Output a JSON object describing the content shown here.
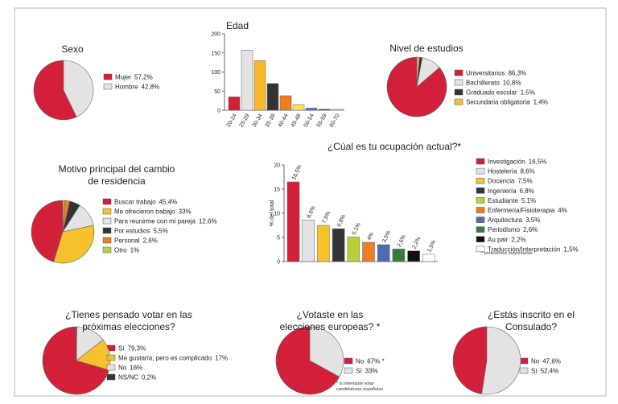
{
  "chart_data": [
    {
      "type": "pie",
      "title": "Sexo",
      "categories": [
        "Mujer",
        "Hombre"
      ],
      "values": [
        57.2,
        42.8
      ],
      "value_labels": [
        "57,2%",
        "42,8%"
      ],
      "colors": [
        "#d3203a",
        "#e3e3e3"
      ]
    },
    {
      "type": "bar",
      "title": "Edad",
      "categories": [
        "20-24",
        "25-29",
        "30-34",
        "35-39",
        "40-44",
        "45-49",
        "50-54",
        "55-59",
        "60-70"
      ],
      "values": [
        35,
        157,
        130,
        70,
        38,
        15,
        6,
        3,
        3
      ],
      "colors": [
        "#d3203a",
        "#e3e3e3",
        "#f5b82a",
        "#333333",
        "#ef7d22",
        "#f2e84b",
        "#4f7fc0",
        "#3a6d3a",
        "#e3e3e3"
      ],
      "ylim": [
        0,
        200
      ],
      "yticks": [
        0,
        50,
        100,
        150,
        200
      ]
    },
    {
      "type": "pie",
      "title": "Nivel de estudios",
      "categories": [
        "Universitarios",
        "Bachillerato",
        "Graduado escolar",
        "Secundaria obligatoria"
      ],
      "values": [
        86.3,
        10.8,
        1.5,
        1.4
      ],
      "value_labels": [
        "86,3%",
        "10,8%",
        "1,5%",
        "1,4%"
      ],
      "colors": [
        "#d3203a",
        "#e3e3e3",
        "#333333",
        "#f6c12c"
      ]
    },
    {
      "type": "pie",
      "title": "Motivo principal del cambio de residencia",
      "categories": [
        "Buscar trabajo",
        "Me ofrecieron trabajo",
        "Para reunirme con mi pareja",
        "Por estudios",
        "Personal",
        "Otro"
      ],
      "values": [
        45.4,
        33,
        12.6,
        5.5,
        2.6,
        1
      ],
      "value_labels": [
        "45,4%",
        "33%",
        "12,6%",
        "5,5%",
        "2,6%",
        "1%"
      ],
      "colors": [
        "#d3203a",
        "#f6c12c",
        "#e3e3e3",
        "#333333",
        "#ef7d22",
        "#b9cf3c"
      ]
    },
    {
      "type": "bar",
      "title": "¿Cúal es tu ocupación actual?*",
      "y_label": "% del total",
      "note": "* profesiones mayoritarias",
      "categories": [
        "Investigación",
        "Hostelería",
        "Docencia",
        "Ingeniería",
        "Estudiante",
        "Enfermería/Fisioterapia",
        "Arquitectura",
        "Periodismo",
        "Au pair",
        "Traducción/Interpretación"
      ],
      "values": [
        16.5,
        8.6,
        7.5,
        6.8,
        5.1,
        4,
        3.5,
        2.6,
        2.2,
        1.5
      ],
      "value_labels": [
        "16,5%",
        "8,6%",
        "7,5%",
        "6,8%",
        "5,1%",
        "4%",
        "3,5%",
        "2,6%",
        "2,2%",
        "1,5%"
      ],
      "colors": [
        "#d3203a",
        "#e3e3e3",
        "#f6c12c",
        "#333333",
        "#b9cf3c",
        "#ef7d22",
        "#4f6cb3",
        "#2f7f3b",
        "#111111",
        "#ffffff"
      ],
      "ylim": [
        0,
        20
      ],
      "yticks": [
        0,
        5,
        10,
        15,
        20
      ]
    },
    {
      "type": "pie",
      "title": "¿Tienes pensado votar en las próximas elecciones?",
      "categories": [
        "Sí",
        "Me gustaría, pero es complicado",
        "No",
        "NS/NC"
      ],
      "values": [
        79.3,
        17,
        16,
        0.2
      ],
      "value_labels": [
        "79,3%",
        "17%",
        "16%",
        "0,2%"
      ],
      "colors": [
        "#d3203a",
        "#f6c12c",
        "#e3e3e3",
        "#333333"
      ]
    },
    {
      "type": "pie",
      "title": "¿Votaste en las elecciones europeas? *",
      "note": "* si intentaste votar candidaturas españolas",
      "categories": [
        "No",
        "Sí"
      ],
      "values": [
        67,
        33
      ],
      "value_labels": [
        "67%  *",
        "33%"
      ],
      "colors": [
        "#d3203a",
        "#e3e3e3"
      ]
    },
    {
      "type": "pie",
      "title": "¿Estás inscrito en el Consulado?",
      "categories": [
        "No",
        "Sí"
      ],
      "values": [
        47.6,
        52.4
      ],
      "value_labels": [
        "47,6%",
        "52,4%"
      ],
      "colors": [
        "#d3203a",
        "#e3e3e3"
      ]
    }
  ]
}
